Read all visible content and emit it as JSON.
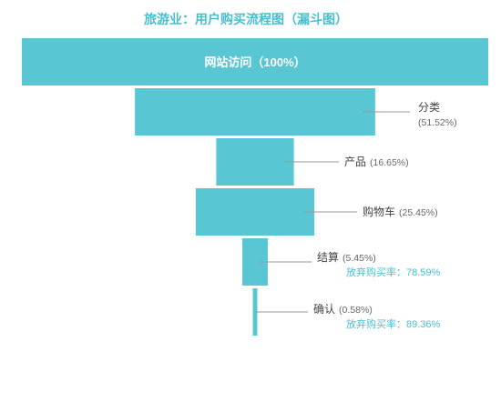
{
  "colors": {
    "bar": "#58c6d3",
    "title": "#49bfcd",
    "leader": "#999999",
    "label": "#444444",
    "pct": "#666666",
    "abandon": "#49bfcd",
    "inside_text": "#ffffff"
  },
  "chart_data": {
    "type": "funnel",
    "title": "旅游业：用户购买流程图（漏斗图）",
    "max_value": 100,
    "stages": [
      {
        "name": "网站访问",
        "value": 100,
        "label": "网站访问（100%）",
        "pct_text": "",
        "abandon_text": ""
      },
      {
        "name": "分类",
        "value": 51.52,
        "label": "分类",
        "pct_text": "(51.52%)",
        "abandon_text": ""
      },
      {
        "name": "产品",
        "value": 16.65,
        "label": "产品",
        "pct_text": "(16.65%)",
        "abandon_text": ""
      },
      {
        "name": "购物车",
        "value": 25.45,
        "label": "购物车",
        "pct_text": "(25.45%)",
        "abandon_text": ""
      },
      {
        "name": "结算",
        "value": 5.45,
        "label": "结算",
        "pct_text": "(5.45%)",
        "abandon_text": "放弃购买率：78.59%"
      },
      {
        "name": "确认",
        "value": 0.58,
        "label": "确认",
        "pct_text": "(0.58%)",
        "abandon_text": "放弃购买率：89.36%"
      }
    ]
  }
}
